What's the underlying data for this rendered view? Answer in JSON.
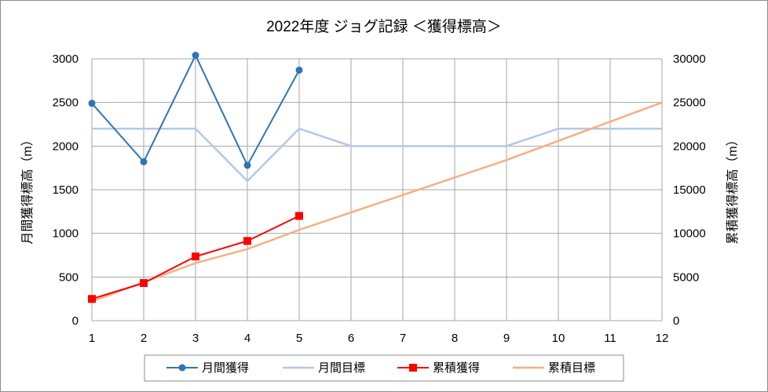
{
  "chart_data": {
    "type": "line",
    "title": "2022年度 ジョグ記録 ＜獲得標高＞",
    "ylabel_left": "月間獲得標高（m）",
    "ylabel_right": "累積獲得標高（m）",
    "x": [
      1,
      2,
      3,
      4,
      5,
      6,
      7,
      8,
      9,
      10,
      11,
      12
    ],
    "x_tick_labels": [
      "1",
      "2",
      "3",
      "4",
      "5",
      "6",
      "7",
      "8",
      "9",
      "10",
      "11",
      "12"
    ],
    "ylim_left": [
      0,
      3000
    ],
    "yticks_left": [
      "0",
      "500",
      "1000",
      "1500",
      "2000",
      "2500",
      "3000"
    ],
    "ylim_right": [
      0,
      30000
    ],
    "yticks_right": [
      "0",
      "5000",
      "10000",
      "15000",
      "20000",
      "25000",
      "30000"
    ],
    "grid": true,
    "legend_position": "bottom",
    "series": [
      {
        "name": "月間獲得",
        "axis": "left",
        "color": "#2e75b6",
        "marker": "circle",
        "values": [
          2490,
          1820,
          3040,
          1780,
          2870,
          null,
          null,
          null,
          null,
          null,
          null,
          null
        ]
      },
      {
        "name": "月間目標",
        "axis": "left",
        "color": "#b4c7e7",
        "marker": "none",
        "values": [
          2200,
          2200,
          2200,
          1600,
          2200,
          2000,
          2000,
          2000,
          2000,
          2200,
          2200,
          2200
        ]
      },
      {
        "name": "累積獲得",
        "axis": "right",
        "color": "#ff0000",
        "marker": "square",
        "values": [
          2490,
          4310,
          7350,
          9130,
          12000,
          null,
          null,
          null,
          null,
          null,
          null,
          null
        ]
      },
      {
        "name": "累積目標",
        "axis": "right",
        "color": "#f4b183",
        "marker": "none",
        "values": [
          2200,
          4400,
          6600,
          8200,
          10400,
          12400,
          14400,
          16400,
          18400,
          20600,
          22800,
          25000
        ]
      }
    ]
  }
}
